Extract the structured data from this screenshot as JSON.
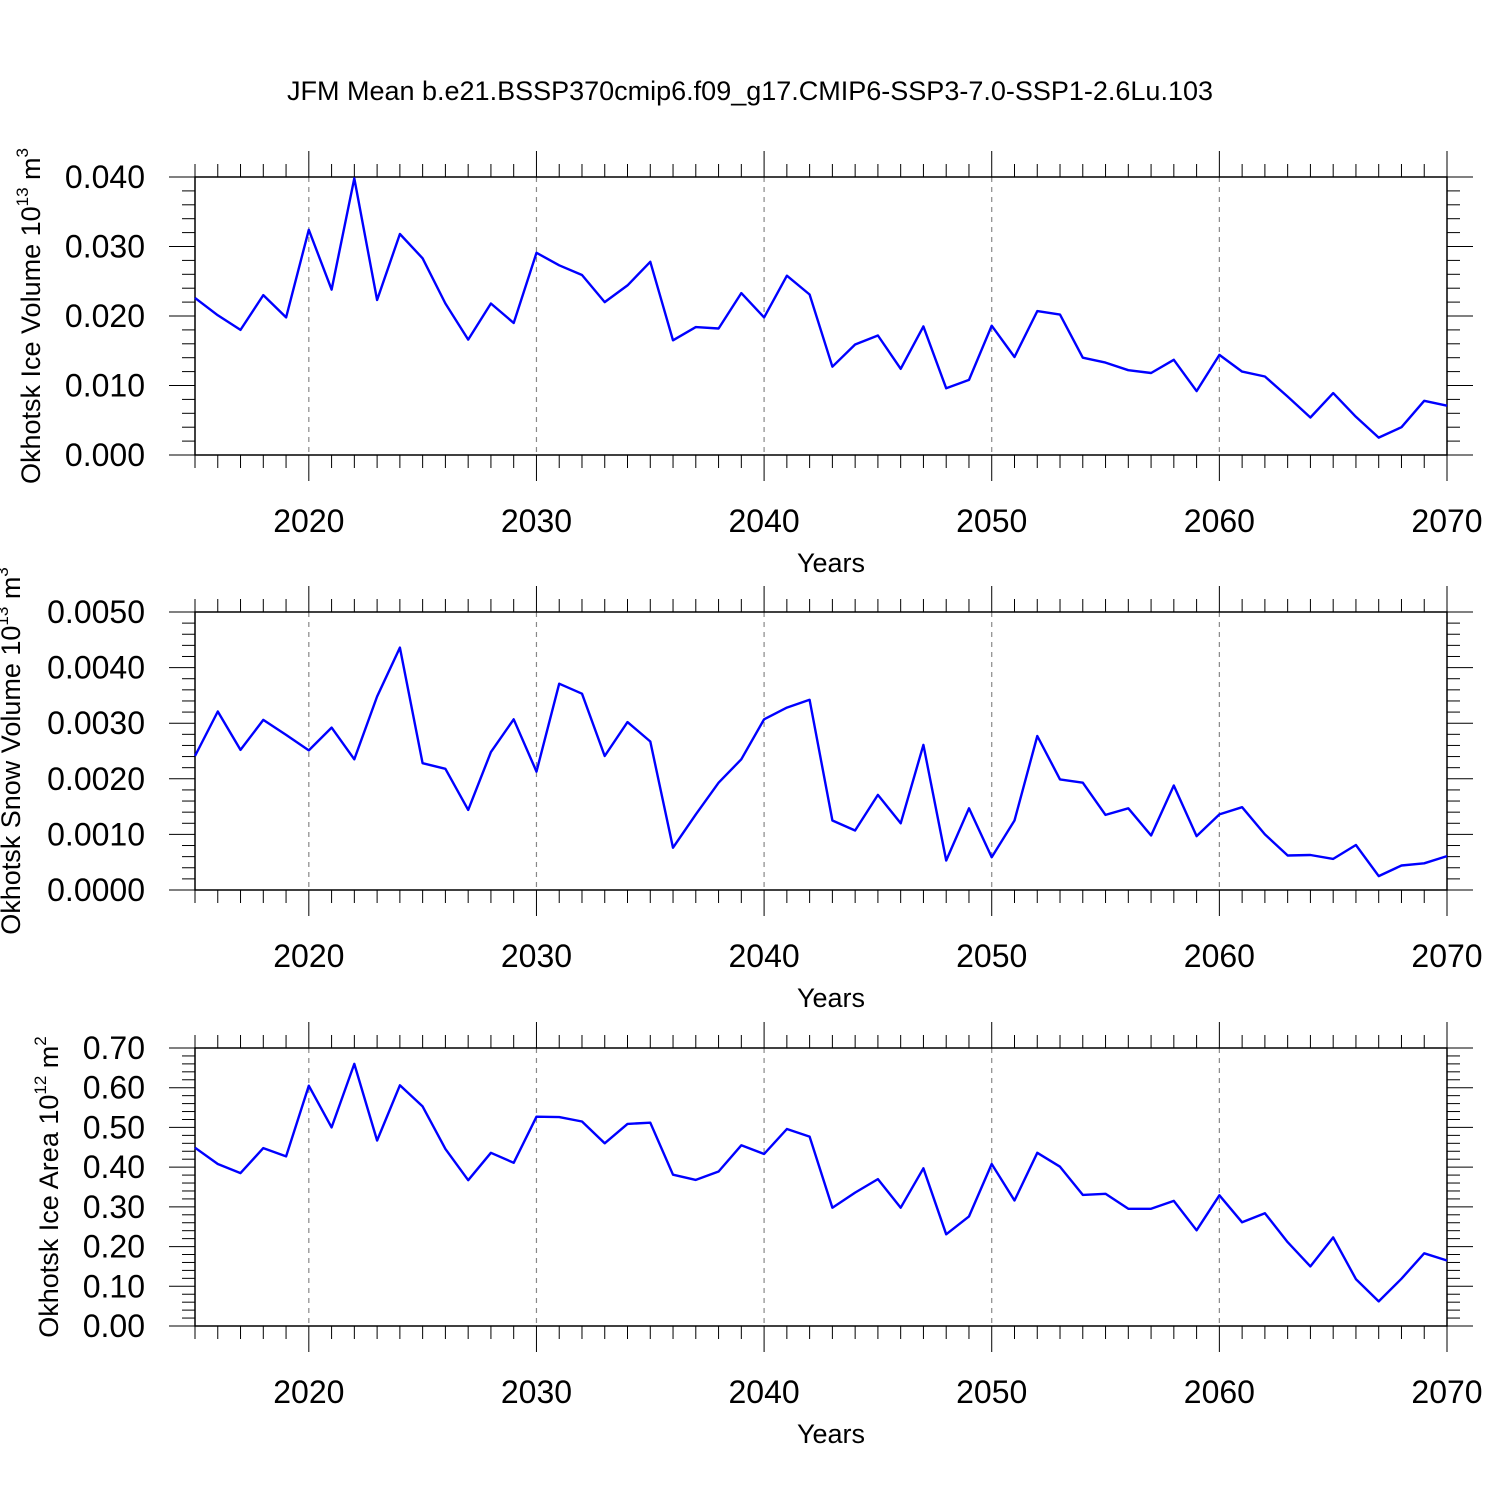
{
  "title": "JFM Mean b.e21.BSSP370cmip6.f09_g17.CMIP6-SSP3-7.0-SSP1-2.6Lu.103",
  "line_color": "#0000ff",
  "chart_data": [
    {
      "type": "line",
      "xlabel": "Years",
      "ylabel": {
        "text": "Okhotsk Ice Volume 10",
        "exp": "13",
        "unit": " m",
        "unit_exp": "3"
      },
      "xlim": [
        2015,
        2070
      ],
      "ylim": [
        0,
        0.04
      ],
      "yticks": [
        "0.000",
        "0.010",
        "0.020",
        "0.030",
        "0.040"
      ],
      "xticks": [
        "2020",
        "2030",
        "2040",
        "2050",
        "2060",
        "2070"
      ],
      "grid": "vertical dashed at major x ticks",
      "x": [
        2015,
        2016,
        2017,
        2018,
        2019,
        2020,
        2021,
        2022,
        2023,
        2024,
        2025,
        2026,
        2027,
        2028,
        2029,
        2030,
        2031,
        2032,
        2033,
        2034,
        2035,
        2036,
        2037,
        2038,
        2039,
        2040,
        2041,
        2042,
        2043,
        2044,
        2045,
        2046,
        2047,
        2048,
        2049,
        2050,
        2051,
        2052,
        2053,
        2054,
        2055,
        2056,
        2057,
        2058,
        2059,
        2060,
        2061,
        2062,
        2063,
        2064,
        2065,
        2066,
        2067,
        2068,
        2069,
        2070
      ],
      "series": [
        {
          "values": [
            0.0226,
            0.0201,
            0.018,
            0.023,
            0.0198,
            0.0324,
            0.0238,
            0.0398,
            0.0223,
            0.0318,
            0.0283,
            0.0218,
            0.0166,
            0.0218,
            0.019,
            0.0291,
            0.0273,
            0.0259,
            0.022,
            0.0244,
            0.0278,
            0.0165,
            0.0184,
            0.0182,
            0.0233,
            0.0198,
            0.0258,
            0.0231,
            0.0127,
            0.0159,
            0.0172,
            0.0124,
            0.0185,
            0.0096,
            0.0108,
            0.0186,
            0.0141,
            0.0207,
            0.0202,
            0.014,
            0.0133,
            0.0122,
            0.0118,
            0.0137,
            0.0092,
            0.0144,
            0.012,
            0.0113,
            0.0084,
            0.0054,
            0.0089,
            0.0055,
            0.0025,
            0.004,
            0.0078,
            0.0071
          ]
        }
      ]
    },
    {
      "type": "line",
      "xlabel": "Years",
      "ylabel": {
        "text": "Okhotsk Snow Volume 10",
        "exp": "13",
        "unit": " m",
        "unit_exp": "3"
      },
      "xlim": [
        2015,
        2070
      ],
      "ylim": [
        0,
        0.005
      ],
      "yticks": [
        "0.0000",
        "0.0010",
        "0.0020",
        "0.0030",
        "0.0040",
        "0.0050"
      ],
      "xticks": [
        "2020",
        "2030",
        "2040",
        "2050",
        "2060",
        "2070"
      ],
      "grid": "vertical dashed at major x ticks",
      "x": [
        2015,
        2016,
        2017,
        2018,
        2019,
        2020,
        2021,
        2022,
        2023,
        2024,
        2025,
        2026,
        2027,
        2028,
        2029,
        2030,
        2031,
        2032,
        2033,
        2034,
        2035,
        2036,
        2037,
        2038,
        2039,
        2040,
        2041,
        2042,
        2043,
        2044,
        2045,
        2046,
        2047,
        2048,
        2049,
        2050,
        2051,
        2052,
        2053,
        2054,
        2055,
        2056,
        2057,
        2058,
        2059,
        2060,
        2061,
        2062,
        2063,
        2064,
        2065,
        2066,
        2067,
        2068,
        2069,
        2070
      ],
      "series": [
        {
          "values": [
            0.00241,
            0.00321,
            0.00252,
            0.00306,
            0.00279,
            0.00251,
            0.00292,
            0.00235,
            0.00348,
            0.00436,
            0.00228,
            0.00218,
            0.00144,
            0.00248,
            0.00307,
            0.00213,
            0.00371,
            0.00353,
            0.00241,
            0.00302,
            0.00267,
            0.00076,
            0.00136,
            0.00193,
            0.00235,
            0.00307,
            0.00328,
            0.00342,
            0.00125,
            0.00107,
            0.00171,
            0.0012,
            0.00261,
            0.00053,
            0.00147,
            0.00059,
            0.00125,
            0.00277,
            0.00199,
            0.00193,
            0.00135,
            0.00147,
            0.00098,
            0.00188,
            0.00097,
            0.00136,
            0.00149,
            0.001,
            0.00062,
            0.00063,
            0.00056,
            0.00081,
            0.00025,
            0.00044,
            0.00048,
            0.00061
          ]
        }
      ]
    },
    {
      "type": "line",
      "xlabel": "Years",
      "ylabel": {
        "text": "Okhotsk Ice Area 10",
        "exp": "12",
        "unit": " m",
        "unit_exp": "2"
      },
      "xlim": [
        2015,
        2070
      ],
      "ylim": [
        0,
        0.7
      ],
      "yticks": [
        "0.00",
        "0.10",
        "0.20",
        "0.30",
        "0.40",
        "0.50",
        "0.60",
        "0.70"
      ],
      "xticks": [
        "2020",
        "2030",
        "2040",
        "2050",
        "2060",
        "2070"
      ],
      "grid": "vertical dashed at major x ticks",
      "x": [
        2015,
        2016,
        2017,
        2018,
        2019,
        2020,
        2021,
        2022,
        2023,
        2024,
        2025,
        2026,
        2027,
        2028,
        2029,
        2030,
        2031,
        2032,
        2033,
        2034,
        2035,
        2036,
        2037,
        2038,
        2039,
        2040,
        2041,
        2042,
        2043,
        2044,
        2045,
        2046,
        2047,
        2048,
        2049,
        2050,
        2051,
        2052,
        2053,
        2054,
        2055,
        2056,
        2057,
        2058,
        2059,
        2060,
        2061,
        2062,
        2063,
        2064,
        2065,
        2066,
        2067,
        2068,
        2069,
        2070
      ],
      "series": [
        {
          "values": [
            0.449,
            0.408,
            0.385,
            0.448,
            0.427,
            0.605,
            0.5,
            0.66,
            0.467,
            0.606,
            0.553,
            0.446,
            0.367,
            0.436,
            0.411,
            0.527,
            0.526,
            0.515,
            0.46,
            0.509,
            0.512,
            0.381,
            0.368,
            0.389,
            0.455,
            0.433,
            0.496,
            0.477,
            0.298,
            0.336,
            0.37,
            0.298,
            0.397,
            0.231,
            0.276,
            0.408,
            0.316,
            0.436,
            0.401,
            0.33,
            0.333,
            0.295,
            0.295,
            0.315,
            0.241,
            0.329,
            0.261,
            0.284,
            0.211,
            0.15,
            0.223,
            0.118,
            0.062,
            0.119,
            0.183,
            0.165
          ]
        }
      ]
    }
  ]
}
